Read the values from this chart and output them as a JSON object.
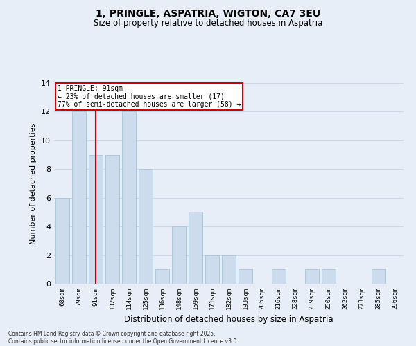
{
  "title1": "1, PRINGLE, ASPATRIA, WIGTON, CA7 3EU",
  "title2": "Size of property relative to detached houses in Aspatria",
  "xlabel": "Distribution of detached houses by size in Aspatria",
  "ylabel": "Number of detached properties",
  "categories": [
    "68sqm",
    "79sqm",
    "91sqm",
    "102sqm",
    "114sqm",
    "125sqm",
    "136sqm",
    "148sqm",
    "159sqm",
    "171sqm",
    "182sqm",
    "193sqm",
    "205sqm",
    "216sqm",
    "228sqm",
    "239sqm",
    "250sqm",
    "262sqm",
    "273sqm",
    "285sqm",
    "296sqm"
  ],
  "values": [
    6,
    12,
    9,
    9,
    12,
    8,
    1,
    4,
    5,
    2,
    2,
    1,
    0,
    1,
    0,
    1,
    1,
    0,
    0,
    1,
    0
  ],
  "bar_color": "#ccdcec",
  "bar_edge_color": "#b0c8dc",
  "highlight_index": 2,
  "highlight_line_color": "#cc0000",
  "annotation_text": "1 PRINGLE: 91sqm\n← 23% of detached houses are smaller (17)\n77% of semi-detached houses are larger (58) →",
  "annotation_box_color": "#ffffff",
  "annotation_box_edge": "#cc0000",
  "grid_color": "#ccd8e8",
  "background_color": "#e8eef8",
  "ylim": [
    0,
    14
  ],
  "yticks": [
    0,
    2,
    4,
    6,
    8,
    10,
    12,
    14
  ],
  "footnote": "Contains HM Land Registry data © Crown copyright and database right 2025.\nContains public sector information licensed under the Open Government Licence v3.0."
}
